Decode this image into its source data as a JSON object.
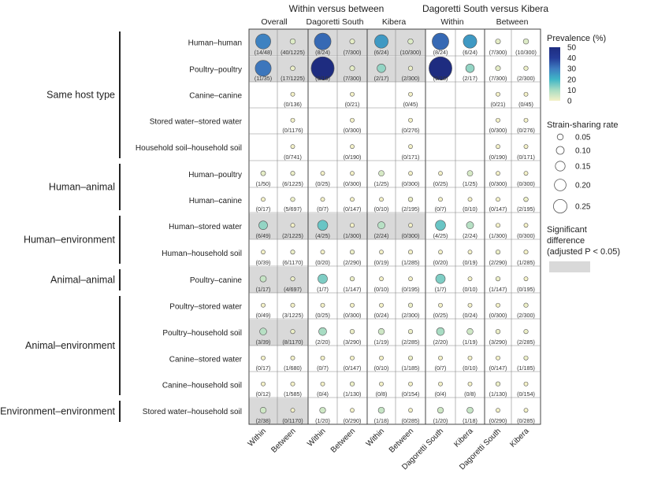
{
  "chart_data": {
    "type": "bubble-matrix",
    "header": {
      "block1_title": "Within versus between",
      "block2_title": "Dagoretti South versus Kibera",
      "subheaders": [
        "Overall",
        "Dagoretti South",
        "Kibera",
        "Within",
        "Between"
      ]
    },
    "columns": [
      "Within",
      "Between",
      "Within",
      "Between",
      "Within",
      "Between",
      "Dagoretti South",
      "Kibera",
      "Dagoretti South",
      "Kibera"
    ],
    "groups": [
      {
        "name": "Same host type",
        "rows": [
          0,
          1,
          2,
          3,
          4
        ]
      },
      {
        "name": "Human–animal",
        "rows": [
          5,
          6
        ]
      },
      {
        "name": "Human–environment",
        "rows": [
          7,
          8
        ]
      },
      {
        "name": "Animal–animal",
        "rows": [
          9
        ]
      },
      {
        "name": "Animal–environment",
        "rows": [
          10,
          11,
          12,
          13
        ]
      },
      {
        "name": "Environment–environment",
        "rows": [
          14
        ]
      }
    ],
    "rows": [
      {
        "label": "Human–human",
        "cells": [
          {
            "t": "(14/48)",
            "r": 0.292,
            "p": 29,
            "s": true
          },
          {
            "t": "(40/1225)",
            "r": 0.033,
            "p": 3,
            "s": true
          },
          {
            "t": "(8/24)",
            "r": 0.333,
            "p": 33,
            "s": true
          },
          {
            "t": "(7/300)",
            "r": 0.023,
            "p": 2,
            "s": true
          },
          {
            "t": "(6/24)",
            "r": 0.25,
            "p": 25,
            "s": true
          },
          {
            "t": "(10/300)",
            "r": 0.033,
            "p": 3,
            "s": true
          },
          {
            "t": "(8/24)",
            "r": 0.333,
            "p": 33,
            "s": false
          },
          {
            "t": "(6/24)",
            "r": 0.25,
            "p": 25,
            "s": false
          },
          {
            "t": "(7/300)",
            "r": 0.023,
            "p": 2,
            "s": false
          },
          {
            "t": "(10/300)",
            "r": 0.033,
            "p": 3,
            "s": false
          }
        ]
      },
      {
        "label": "Poultry–poultry",
        "cells": [
          {
            "t": "(11/35)",
            "r": 0.314,
            "p": 31,
            "s": true
          },
          {
            "t": "(17/1225)",
            "r": 0.014,
            "p": 1,
            "s": true
          },
          {
            "t": "(9/18)",
            "r": 0.5,
            "p": 50,
            "s": true
          },
          {
            "t": "(7/300)",
            "r": 0.023,
            "p": 2,
            "s": true
          },
          {
            "t": "(2/17)",
            "r": 0.118,
            "p": 12,
            "s": true
          },
          {
            "t": "(2/300)",
            "r": 0.007,
            "p": 1,
            "s": true
          },
          {
            "t": "(9/18)",
            "r": 0.5,
            "p": 50,
            "s": false
          },
          {
            "t": "(2/17)",
            "r": 0.118,
            "p": 12,
            "s": false
          },
          {
            "t": "(7/300)",
            "r": 0.023,
            "p": 2,
            "s": false
          },
          {
            "t": "(2/300)",
            "r": 0.007,
            "p": 1,
            "s": false
          }
        ]
      },
      {
        "label": "Canine–canine",
        "cells": [
          null,
          {
            "t": "(0/136)",
            "r": 0,
            "p": 0,
            "s": false
          },
          null,
          {
            "t": "(0/21)",
            "r": 0,
            "p": 0,
            "s": false
          },
          null,
          {
            "t": "(0/45)",
            "r": 0,
            "p": 0,
            "s": false
          },
          null,
          null,
          {
            "t": "(0/21)",
            "r": 0,
            "p": 0,
            "s": false
          },
          {
            "t": "(0/45)",
            "r": 0,
            "p": 0,
            "s": false
          }
        ]
      },
      {
        "label": "Stored water–stored water",
        "cells": [
          null,
          {
            "t": "(0/1176)",
            "r": 0,
            "p": 0,
            "s": false
          },
          null,
          {
            "t": "(0/300)",
            "r": 0,
            "p": 0,
            "s": false
          },
          null,
          {
            "t": "(0/276)",
            "r": 0,
            "p": 0,
            "s": false
          },
          null,
          null,
          {
            "t": "(0/300)",
            "r": 0,
            "p": 0,
            "s": false
          },
          {
            "t": "(0/276)",
            "r": 0,
            "p": 0,
            "s": false
          }
        ]
      },
      {
        "label": "Household soil–household soil",
        "cells": [
          null,
          {
            "t": "(0/741)",
            "r": 0,
            "p": 0,
            "s": false
          },
          null,
          {
            "t": "(0/190)",
            "r": 0,
            "p": 0,
            "s": false
          },
          null,
          {
            "t": "(0/171)",
            "r": 0,
            "p": 0,
            "s": false
          },
          null,
          null,
          {
            "t": "(0/190)",
            "r": 0,
            "p": 0,
            "s": false
          },
          {
            "t": "(0/171)",
            "r": 0,
            "p": 0,
            "s": false
          }
        ]
      },
      {
        "label": "Human–poultry",
        "cells": [
          {
            "t": "(1/50)",
            "r": 0.02,
            "p": 2,
            "s": false
          },
          {
            "t": "(6/1225)",
            "r": 0.005,
            "p": 1,
            "s": false
          },
          {
            "t": "(0/25)",
            "r": 0,
            "p": 0,
            "s": false
          },
          {
            "t": "(0/300)",
            "r": 0,
            "p": 0,
            "s": false
          },
          {
            "t": "(1/25)",
            "r": 0.04,
            "p": 4,
            "s": false
          },
          {
            "t": "(0/300)",
            "r": 0,
            "p": 0,
            "s": false
          },
          {
            "t": "(0/25)",
            "r": 0,
            "p": 0,
            "s": false
          },
          {
            "t": "(1/25)",
            "r": 0.04,
            "p": 4,
            "s": false
          },
          {
            "t": "(0/300)",
            "r": 0,
            "p": 0,
            "s": false
          },
          {
            "t": "(0/300)",
            "r": 0,
            "p": 0,
            "s": false
          }
        ]
      },
      {
        "label": "Human–canine",
        "cells": [
          {
            "t": "(0/17)",
            "r": 0,
            "p": 0,
            "s": false
          },
          {
            "t": "(5/697)",
            "r": 0.007,
            "p": 1,
            "s": false
          },
          {
            "t": "(0/7)",
            "r": 0,
            "p": 0,
            "s": false
          },
          {
            "t": "(0/147)",
            "r": 0,
            "p": 0,
            "s": false
          },
          {
            "t": "(0/10)",
            "r": 0,
            "p": 0,
            "s": false
          },
          {
            "t": "(2/195)",
            "r": 0.01,
            "p": 1,
            "s": false
          },
          {
            "t": "(0/7)",
            "r": 0,
            "p": 0,
            "s": false
          },
          {
            "t": "(0/10)",
            "r": 0,
            "p": 0,
            "s": false
          },
          {
            "t": "(0/147)",
            "r": 0,
            "p": 0,
            "s": false
          },
          {
            "t": "(2/195)",
            "r": 0.01,
            "p": 1,
            "s": false
          }
        ]
      },
      {
        "label": "Human–stored water",
        "cells": [
          {
            "t": "(6/49)",
            "r": 0.122,
            "p": 12,
            "s": true
          },
          {
            "t": "(2/1225)",
            "r": 0.002,
            "p": 0,
            "s": true
          },
          {
            "t": "(4/25)",
            "r": 0.16,
            "p": 16,
            "s": true
          },
          {
            "t": "(1/300)",
            "r": 0.003,
            "p": 0,
            "s": true
          },
          {
            "t": "(2/24)",
            "r": 0.083,
            "p": 8,
            "s": true
          },
          {
            "t": "(0/300)",
            "r": 0,
            "p": 0,
            "s": true
          },
          {
            "t": "(4/25)",
            "r": 0.16,
            "p": 16,
            "s": false
          },
          {
            "t": "(2/24)",
            "r": 0.083,
            "p": 8,
            "s": false
          },
          {
            "t": "(1/300)",
            "r": 0.003,
            "p": 0,
            "s": false
          },
          {
            "t": "(0/300)",
            "r": 0,
            "p": 0,
            "s": false
          }
        ]
      },
      {
        "label": "Human–household soil",
        "cells": [
          {
            "t": "(0/39)",
            "r": 0,
            "p": 0,
            "s": false
          },
          {
            "t": "(6/1170)",
            "r": 0.005,
            "p": 1,
            "s": false
          },
          {
            "t": "(0/20)",
            "r": 0,
            "p": 0,
            "s": false
          },
          {
            "t": "(2/290)",
            "r": 0.007,
            "p": 1,
            "s": false
          },
          {
            "t": "(0/19)",
            "r": 0,
            "p": 0,
            "s": false
          },
          {
            "t": "(1/285)",
            "r": 0.004,
            "p": 0,
            "s": false
          },
          {
            "t": "(0/20)",
            "r": 0,
            "p": 0,
            "s": false
          },
          {
            "t": "(0/19)",
            "r": 0,
            "p": 0,
            "s": false
          },
          {
            "t": "(2/290)",
            "r": 0.007,
            "p": 1,
            "s": false
          },
          {
            "t": "(1/285)",
            "r": 0.004,
            "p": 0,
            "s": false
          }
        ]
      },
      {
        "label": "Poultry–canine",
        "cells": [
          {
            "t": "(1/17)",
            "r": 0.059,
            "p": 6,
            "s": true
          },
          {
            "t": "(4/697)",
            "r": 0.006,
            "p": 1,
            "s": true
          },
          {
            "t": "(1/7)",
            "r": 0.143,
            "p": 14,
            "s": false
          },
          {
            "t": "(1/147)",
            "r": 0.007,
            "p": 1,
            "s": false
          },
          {
            "t": "(0/10)",
            "r": 0,
            "p": 0,
            "s": false
          },
          {
            "t": "(0/195)",
            "r": 0,
            "p": 0,
            "s": false
          },
          {
            "t": "(1/7)",
            "r": 0.143,
            "p": 14,
            "s": false
          },
          {
            "t": "(0/10)",
            "r": 0,
            "p": 0,
            "s": false
          },
          {
            "t": "(1/147)",
            "r": 0.007,
            "p": 1,
            "s": false
          },
          {
            "t": "(0/195)",
            "r": 0,
            "p": 0,
            "s": false
          }
        ]
      },
      {
        "label": "Poultry–stored water",
        "cells": [
          {
            "t": "(0/49)",
            "r": 0,
            "p": 0,
            "s": false
          },
          {
            "t": "(3/1225)",
            "r": 0.002,
            "p": 0,
            "s": false
          },
          {
            "t": "(0/25)",
            "r": 0,
            "p": 0,
            "s": false
          },
          {
            "t": "(0/300)",
            "r": 0,
            "p": 0,
            "s": false
          },
          {
            "t": "(0/24)",
            "r": 0,
            "p": 0,
            "s": false
          },
          {
            "t": "(2/300)",
            "r": 0.007,
            "p": 1,
            "s": false
          },
          {
            "t": "(0/25)",
            "r": 0,
            "p": 0,
            "s": false
          },
          {
            "t": "(0/24)",
            "r": 0,
            "p": 0,
            "s": false
          },
          {
            "t": "(0/300)",
            "r": 0,
            "p": 0,
            "s": false
          },
          {
            "t": "(2/300)",
            "r": 0.007,
            "p": 1,
            "s": false
          }
        ]
      },
      {
        "label": "Poultry–household soil",
        "cells": [
          {
            "t": "(3/39)",
            "r": 0.077,
            "p": 8,
            "s": true
          },
          {
            "t": "(8/1170)",
            "r": 0.007,
            "p": 1,
            "s": true
          },
          {
            "t": "(2/20)",
            "r": 0.1,
            "p": 10,
            "s": false
          },
          {
            "t": "(3/290)",
            "r": 0.01,
            "p": 1,
            "s": false
          },
          {
            "t": "(1/19)",
            "r": 0.053,
            "p": 5,
            "s": false
          },
          {
            "t": "(2/285)",
            "r": 0.007,
            "p": 1,
            "s": false
          },
          {
            "t": "(2/20)",
            "r": 0.1,
            "p": 10,
            "s": false
          },
          {
            "t": "(1/19)",
            "r": 0.053,
            "p": 5,
            "s": false
          },
          {
            "t": "(3/290)",
            "r": 0.01,
            "p": 1,
            "s": false
          },
          {
            "t": "(2/285)",
            "r": 0.007,
            "p": 1,
            "s": false
          }
        ]
      },
      {
        "label": "Canine–stored water",
        "cells": [
          {
            "t": "(0/17)",
            "r": 0,
            "p": 0,
            "s": false
          },
          {
            "t": "(1/680)",
            "r": 0.001,
            "p": 0,
            "s": false
          },
          {
            "t": "(0/7)",
            "r": 0,
            "p": 0,
            "s": false
          },
          {
            "t": "(0/147)",
            "r": 0,
            "p": 0,
            "s": false
          },
          {
            "t": "(0/10)",
            "r": 0,
            "p": 0,
            "s": false
          },
          {
            "t": "(1/185)",
            "r": 0.005,
            "p": 1,
            "s": false
          },
          {
            "t": "(0/7)",
            "r": 0,
            "p": 0,
            "s": false
          },
          {
            "t": "(0/10)",
            "r": 0,
            "p": 0,
            "s": false
          },
          {
            "t": "(0/147)",
            "r": 0,
            "p": 0,
            "s": false
          },
          {
            "t": "(1/185)",
            "r": 0.005,
            "p": 1,
            "s": false
          }
        ]
      },
      {
        "label": "Canine–household soil",
        "cells": [
          {
            "t": "(0/12)",
            "r": 0,
            "p": 0,
            "s": false
          },
          {
            "t": "(1/585)",
            "r": 0.002,
            "p": 0,
            "s": false
          },
          {
            "t": "(0/4)",
            "r": 0,
            "p": 0,
            "s": false
          },
          {
            "t": "(1/130)",
            "r": 0.008,
            "p": 1,
            "s": false
          },
          {
            "t": "(0/8)",
            "r": 0,
            "p": 0,
            "s": false
          },
          {
            "t": "(0/154)",
            "r": 0,
            "p": 0,
            "s": false
          },
          {
            "t": "(0/4)",
            "r": 0,
            "p": 0,
            "s": false
          },
          {
            "t": "(0/8)",
            "r": 0,
            "p": 0,
            "s": false
          },
          {
            "t": "(1/130)",
            "r": 0.008,
            "p": 1,
            "s": false
          },
          {
            "t": "(0/154)",
            "r": 0,
            "p": 0,
            "s": false
          }
        ]
      },
      {
        "label": "Stored water–household soil",
        "cells": [
          {
            "t": "(2/38)",
            "r": 0.053,
            "p": 5,
            "s": true
          },
          {
            "t": "(0/1170)",
            "r": 0,
            "p": 0,
            "s": true
          },
          {
            "t": "(1/20)",
            "r": 0.05,
            "p": 5,
            "s": false
          },
          {
            "t": "(0/290)",
            "r": 0,
            "p": 0,
            "s": false
          },
          {
            "t": "(1/18)",
            "r": 0.056,
            "p": 6,
            "s": false
          },
          {
            "t": "(0/285)",
            "r": 0,
            "p": 0,
            "s": false
          },
          {
            "t": "(1/20)",
            "r": 0.05,
            "p": 5,
            "s": false
          },
          {
            "t": "(1/18)",
            "r": 0.056,
            "p": 6,
            "s": false
          },
          {
            "t": "(0/290)",
            "r": 0,
            "p": 0,
            "s": false
          },
          {
            "t": "(0/285)",
            "r": 0,
            "p": 0,
            "s": false
          }
        ]
      }
    ],
    "legend": {
      "prevalence_title": "Prevalence (%)",
      "prevalence_ticks": [
        0,
        10,
        20,
        30,
        40,
        50
      ],
      "prevalence_colors": [
        "#f4f1c7",
        "#a8dcc3",
        "#3fb6c6",
        "#3e7cc0",
        "#253c98",
        "#1e2c80"
      ],
      "rate_title": "Strain-sharing rate",
      "rate_ticks": [
        0.05,
        0.1,
        0.15,
        0.2,
        0.25
      ],
      "rate_tick_labels": [
        "0.05",
        "0.10",
        "0.15",
        "0.20",
        "0.25"
      ],
      "sig_title_line1": "Significant",
      "sig_title_line2": "difference",
      "sig_title_line3": "(adjusted P < 0.05)",
      "sig_color": "#d9d9d9"
    }
  }
}
